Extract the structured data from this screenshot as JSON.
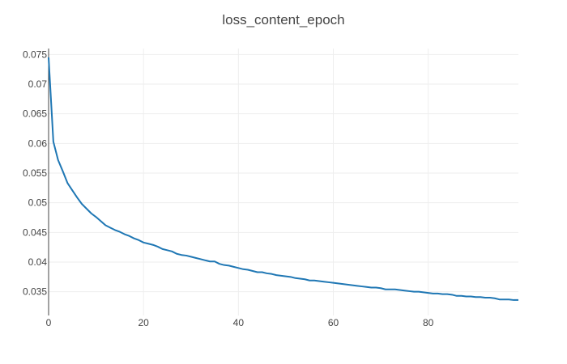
{
  "chart_data": {
    "type": "line",
    "title": "loss_content_epoch",
    "xlabel": "",
    "ylabel": "",
    "xlim": [
      0,
      99
    ],
    "ylim": [
      0.031,
      0.076
    ],
    "grid": true,
    "legend": "none",
    "x_ticks": [
      0,
      20,
      40,
      60,
      80
    ],
    "x_tick_labels": [
      "0",
      "20",
      "40",
      "60",
      "80"
    ],
    "y_ticks": [
      0.035,
      0.04,
      0.045,
      0.05,
      0.055,
      0.06,
      0.065,
      0.07,
      0.075
    ],
    "y_tick_labels": [
      "0.035",
      "0.04",
      "0.045",
      "0.05",
      "0.055",
      "0.06",
      "0.065",
      "0.07",
      "0.075"
    ],
    "colors": {
      "line": "#1f77b4",
      "grid": "#eeeeee",
      "axis": "#444444",
      "text": "#444444"
    },
    "series": [
      {
        "x": [
          0,
          1,
          2,
          3,
          4,
          5,
          6,
          7,
          8,
          9,
          10,
          11,
          12,
          13,
          14,
          15,
          16,
          17,
          18,
          19,
          20,
          21,
          22,
          23,
          24,
          25,
          26,
          27,
          28,
          29,
          30,
          31,
          32,
          33,
          34,
          35,
          36,
          37,
          38,
          39,
          40,
          41,
          42,
          43,
          44,
          45,
          46,
          47,
          48,
          49,
          50,
          51,
          52,
          53,
          54,
          55,
          56,
          57,
          58,
          59,
          60,
          61,
          62,
          63,
          64,
          65,
          66,
          67,
          68,
          69,
          70,
          71,
          72,
          73,
          74,
          75,
          76,
          77,
          78,
          79,
          80,
          81,
          82,
          83,
          84,
          85,
          86,
          87,
          88,
          89,
          90,
          91,
          92,
          93,
          94,
          95,
          96,
          97,
          98,
          99
        ],
        "values": [
          0.0745,
          0.0603,
          0.0572,
          0.0553,
          0.0533,
          0.0521,
          0.0509,
          0.0498,
          0.049,
          0.0482,
          0.0476,
          0.0469,
          0.0462,
          0.0458,
          0.0454,
          0.0451,
          0.0447,
          0.0444,
          0.044,
          0.0437,
          0.0433,
          0.0431,
          0.0429,
          0.0426,
          0.0422,
          0.042,
          0.0418,
          0.0414,
          0.0412,
          0.0411,
          0.0409,
          0.0407,
          0.0405,
          0.0403,
          0.0401,
          0.0401,
          0.0397,
          0.0395,
          0.0394,
          0.0392,
          0.039,
          0.0388,
          0.0387,
          0.0385,
          0.0383,
          0.0383,
          0.0381,
          0.038,
          0.0378,
          0.0377,
          0.0376,
          0.0375,
          0.0373,
          0.0372,
          0.0371,
          0.0369,
          0.0369,
          0.0368,
          0.0367,
          0.0366,
          0.0365,
          0.0364,
          0.0363,
          0.0362,
          0.0361,
          0.036,
          0.0359,
          0.0358,
          0.0357,
          0.0357,
          0.0356,
          0.0354,
          0.0354,
          0.0354,
          0.0353,
          0.0352,
          0.0351,
          0.035,
          0.035,
          0.0349,
          0.0348,
          0.0347,
          0.0347,
          0.0346,
          0.0346,
          0.0345,
          0.0343,
          0.0343,
          0.0342,
          0.0342,
          0.0341,
          0.0341,
          0.034,
          0.034,
          0.0339,
          0.0337,
          0.0337,
          0.0337,
          0.0336,
          0.0336
        ]
      }
    ]
  }
}
